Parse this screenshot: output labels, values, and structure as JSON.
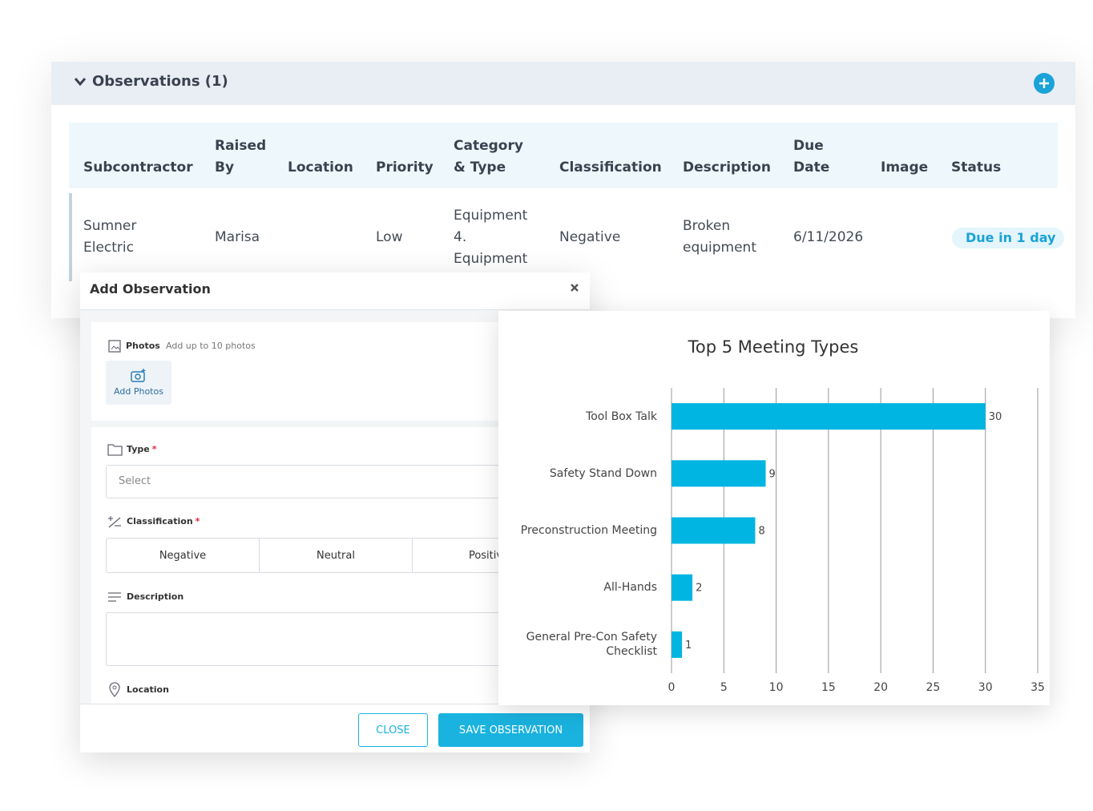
{
  "observations": {
    "title": "Observations (1)",
    "columns": [
      "Subcontractor",
      "Raised By",
      "Location",
      "Priority",
      "Category & Type",
      "Classification",
      "Description",
      "Due Date",
      "Image",
      "Status"
    ],
    "rows": [
      {
        "subcontractor": "Sumner Electric",
        "raised_by": "Marisa",
        "priority": "Low",
        "category_type": "Equipment 4. Equipment",
        "classification": "Negative",
        "description": "Broken equipment",
        "due_date": "6/11/2026",
        "status": "Due in 1 day"
      }
    ]
  },
  "modal": {
    "title": "Add Observation",
    "required_mark": "*",
    "photos": {
      "label": "Photos",
      "hint": "Add up to 10 photos",
      "button": "Add Photos"
    },
    "type": {
      "label": "Type",
      "placeholder": "Select"
    },
    "classification": {
      "label": "Classification",
      "options": [
        "Negative",
        "Neutral",
        "Positive"
      ]
    },
    "description": {
      "label": "Description"
    },
    "location": {
      "label": "Location"
    },
    "buttons": {
      "close": "CLOSE",
      "save": "SAVE OBSERVATION"
    }
  },
  "chart_data": {
    "type": "bar",
    "orientation": "horizontal",
    "title": "Top 5 Meeting Types",
    "categories": [
      "Tool Box Talk",
      "Safety Stand Down",
      "Preconstruction Meeting",
      "All-Hands",
      "General Pre-Con Safety Checklist"
    ],
    "values": [
      30,
      9,
      8,
      2,
      1
    ],
    "color": "#00b5e2",
    "xlim": [
      0,
      35
    ],
    "xticks": [
      0,
      5,
      10,
      15,
      20,
      25,
      30,
      35
    ],
    "grid": true
  }
}
